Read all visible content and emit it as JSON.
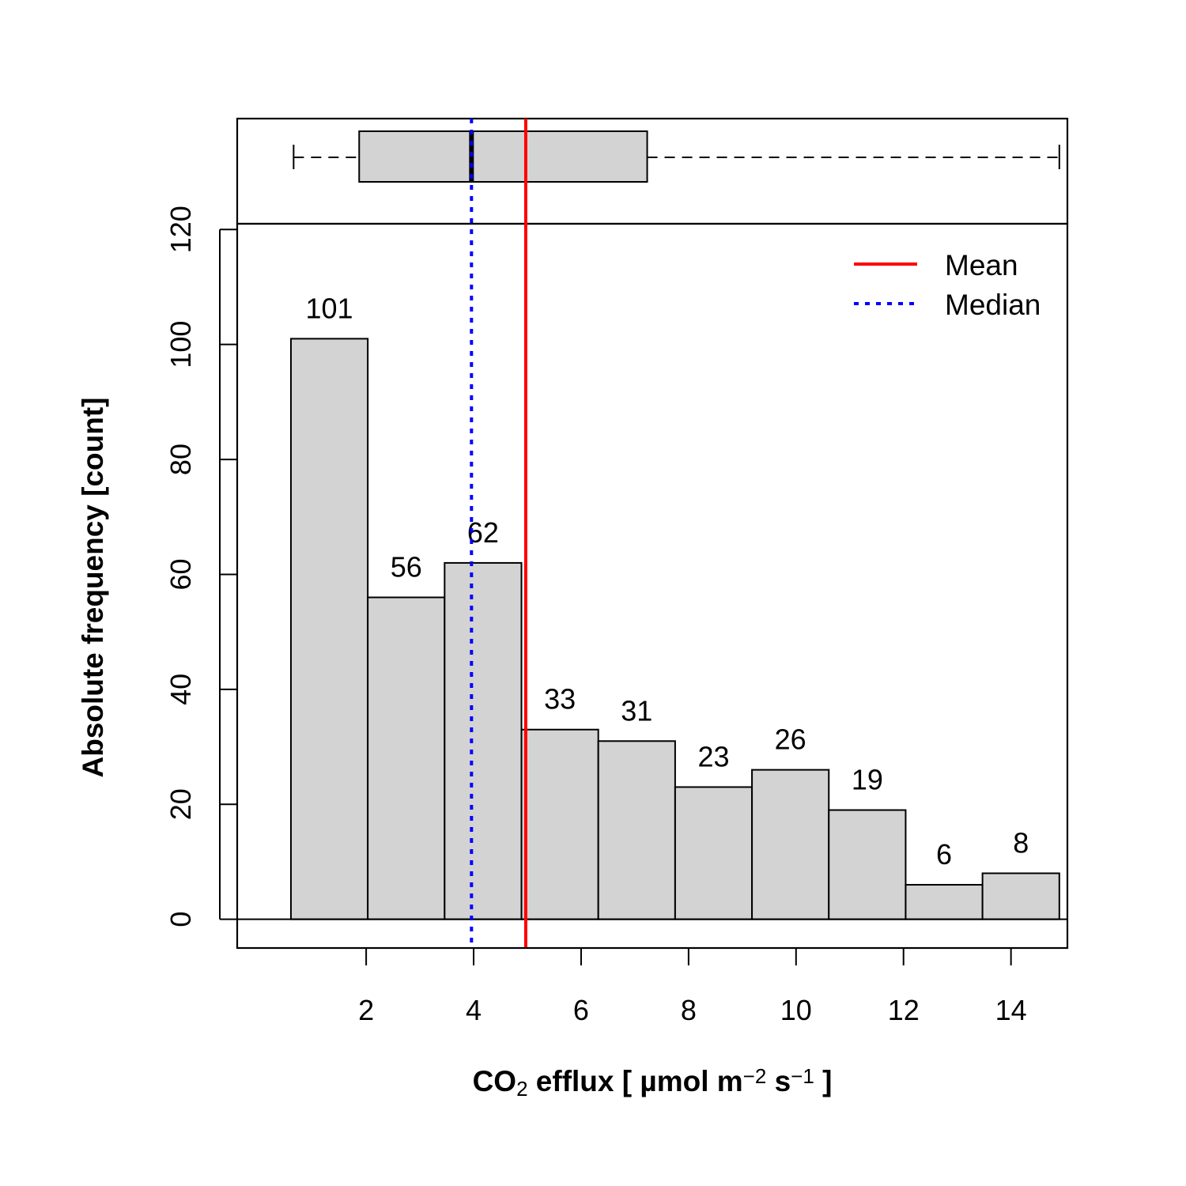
{
  "chart_data": {
    "type": "bar",
    "subtype": "histogram",
    "title": "",
    "xlabel": {
      "parts": [
        {
          "text": "CO",
          "style": "normal"
        },
        {
          "text": "2",
          "style": "sub"
        },
        {
          "text": " efflux [ µmol m",
          "style": "normal"
        },
        {
          "text": "−2",
          "style": "sup"
        },
        {
          "text": " s",
          "style": "normal"
        },
        {
          "text": "−1",
          "style": "sup"
        },
        {
          "text": " ]",
          "style": "normal"
        }
      ]
    },
    "ylabel": "Absolute frequency [count]",
    "bins": [
      {
        "x0": 0.6,
        "x1": 2.03,
        "count": 101
      },
      {
        "x0": 2.03,
        "x1": 3.46,
        "count": 56
      },
      {
        "x0": 3.46,
        "x1": 4.89,
        "count": 62
      },
      {
        "x0": 4.89,
        "x1": 6.32,
        "count": 33
      },
      {
        "x0": 6.32,
        "x1": 7.75,
        "count": 31
      },
      {
        "x0": 7.75,
        "x1": 9.18,
        "count": 23
      },
      {
        "x0": 9.18,
        "x1": 10.61,
        "count": 26
      },
      {
        "x0": 10.61,
        "x1": 12.04,
        "count": 19
      },
      {
        "x0": 12.04,
        "x1": 13.47,
        "count": 6
      },
      {
        "x0": 13.47,
        "x1": 14.9,
        "count": 8
      }
    ],
    "bar_labels": [
      "101",
      "56",
      "62",
      "33",
      "31",
      "23",
      "26",
      "19",
      "6",
      "8"
    ],
    "xlim": [
      -0.4,
      15.05
    ],
    "ylim": [
      -5,
      121
    ],
    "xticks": [
      2,
      4,
      6,
      8,
      10,
      12,
      14
    ],
    "xtick_labels": [
      "2",
      "4",
      "6",
      "8",
      "10",
      "12",
      "14"
    ],
    "yticks": [
      0,
      20,
      40,
      60,
      80,
      100,
      120
    ],
    "ytick_labels": [
      "0",
      "20",
      "40",
      "60",
      "80",
      "100",
      "120"
    ],
    "mean": 4.97,
    "median": 3.96,
    "boxplot": {
      "min": 0.65,
      "q1": 1.87,
      "median": 3.96,
      "q3": 7.23,
      "max": 14.9
    },
    "legend": {
      "position": "top-right",
      "entries": [
        {
          "label": "Mean",
          "color": "#ff0000",
          "style": "solid"
        },
        {
          "label": "Median",
          "color": "#0000ff",
          "style": "dotted"
        }
      ]
    },
    "colors": {
      "bar_fill": "#d3d3d3",
      "outline": "#000000",
      "mean_line": "#ff0000",
      "median_line": "#0000ff"
    },
    "grid": false
  }
}
